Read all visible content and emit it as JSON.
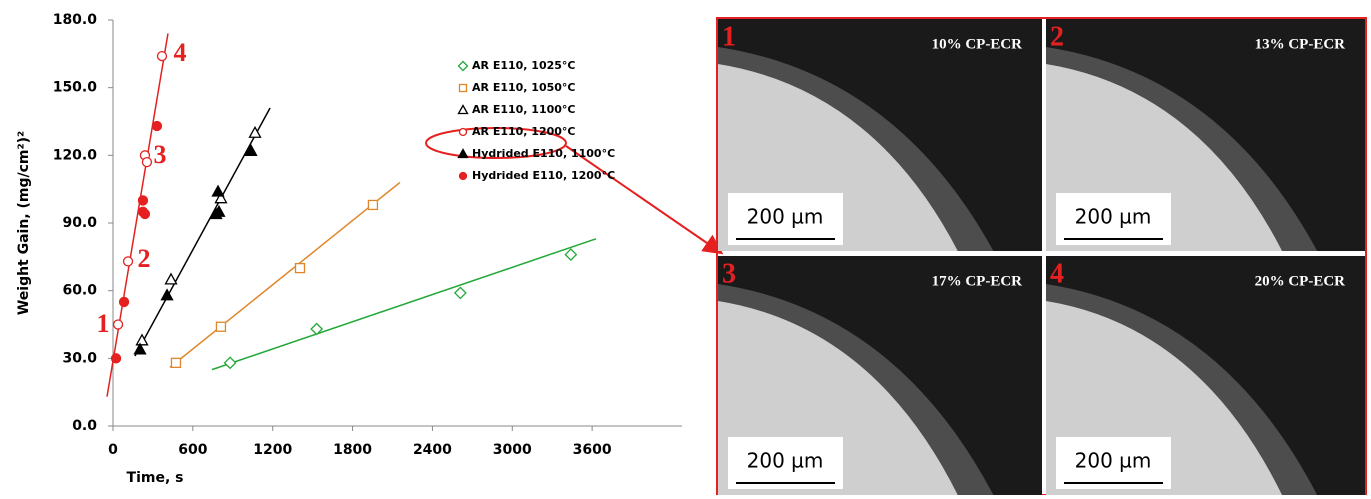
{
  "chart_data": {
    "type": "scatter",
    "x_label": "Time, s",
    "y_label": "Weight Gain, (mg/cm²)²",
    "xlim": [
      0,
      4200
    ],
    "ylim": [
      0,
      180
    ],
    "xticks": [
      0,
      600,
      1200,
      1800,
      2400,
      3000,
      3600
    ],
    "yticks": [
      {
        "value": 0,
        "label": "0.0"
      },
      {
        "value": 30,
        "label": "30.0"
      },
      {
        "value": 60,
        "label": "60.0"
      },
      {
        "value": 90,
        "label": "90.0"
      },
      {
        "value": 120,
        "label": "120.0"
      },
      {
        "value": 150,
        "label": "150.0"
      },
      {
        "value": 180,
        "label": "180.0"
      }
    ],
    "series": [
      {
        "name": "AR E110, 1025°C",
        "color": "#22a838",
        "marker": "diamond",
        "filled": false,
        "x": [
          880,
          1530,
          2610,
          3440
        ],
        "values": [
          28,
          43,
          59,
          76
        ]
      },
      {
        "name": "AR E110, 1050°C",
        "color": "#e0862a",
        "marker": "square",
        "filled": false,
        "x": [
          473,
          811,
          1405,
          1953
        ],
        "values": [
          28,
          44,
          70,
          98
        ]
      },
      {
        "name": "AR E110, 1100°C",
        "color": "#000000",
        "marker": "triangle",
        "filled": false,
        "x": [
          218,
          436,
          811,
          1067
        ],
        "values": [
          38,
          65,
          101,
          130
        ]
      },
      {
        "name": "AR E110, 1200°C",
        "color": "#e52020",
        "marker": "circle",
        "filled": false,
        "x": [
          38,
          113,
          240,
          255,
          368
        ],
        "values": [
          45,
          73,
          120,
          117,
          164
        ]
      },
      {
        "name": "Hydrided E110, 1100°C",
        "color": "#000000",
        "marker": "triangle",
        "filled": true,
        "x": [
          203,
          406,
          789,
          796,
          774,
          1037
        ],
        "values": [
          34,
          58,
          104,
          95,
          94,
          122
        ]
      },
      {
        "name": "Hydrided E110, 1200°C",
        "color": "#e52020",
        "marker": "circle",
        "filled": true,
        "x": [
          23,
          83,
          225,
          225,
          240,
          330
        ],
        "values": [
          30,
          55,
          100,
          95,
          94,
          133
        ]
      }
    ],
    "trendlines": [
      {
        "color": "#22a838",
        "x": [
          744,
          3629
        ],
        "values": [
          25,
          83
        ]
      },
      {
        "color": "#e0862a",
        "x": [
          428,
          2156
        ],
        "values": [
          26,
          108
        ]
      },
      {
        "color": "#000000",
        "x": [
          165,
          1180
        ],
        "values": [
          31,
          141
        ]
      },
      {
        "color": "#e52020",
        "x": [
          -45,
          413
        ],
        "values": [
          13,
          174
        ]
      }
    ],
    "annotations": [
      "1",
      "2",
      "3",
      "4"
    ],
    "panels": [
      {
        "number": "1",
        "label": "10% CP-ECR",
        "scale": "200 µm"
      },
      {
        "number": "2",
        "label": "13% CP-ECR",
        "scale": "200 µm"
      },
      {
        "number": "3",
        "label": "17% CP-ECR",
        "scale": "200 µm"
      },
      {
        "number": "4",
        "label": "20% CP-ECR",
        "scale": "200 µm"
      }
    ]
  }
}
